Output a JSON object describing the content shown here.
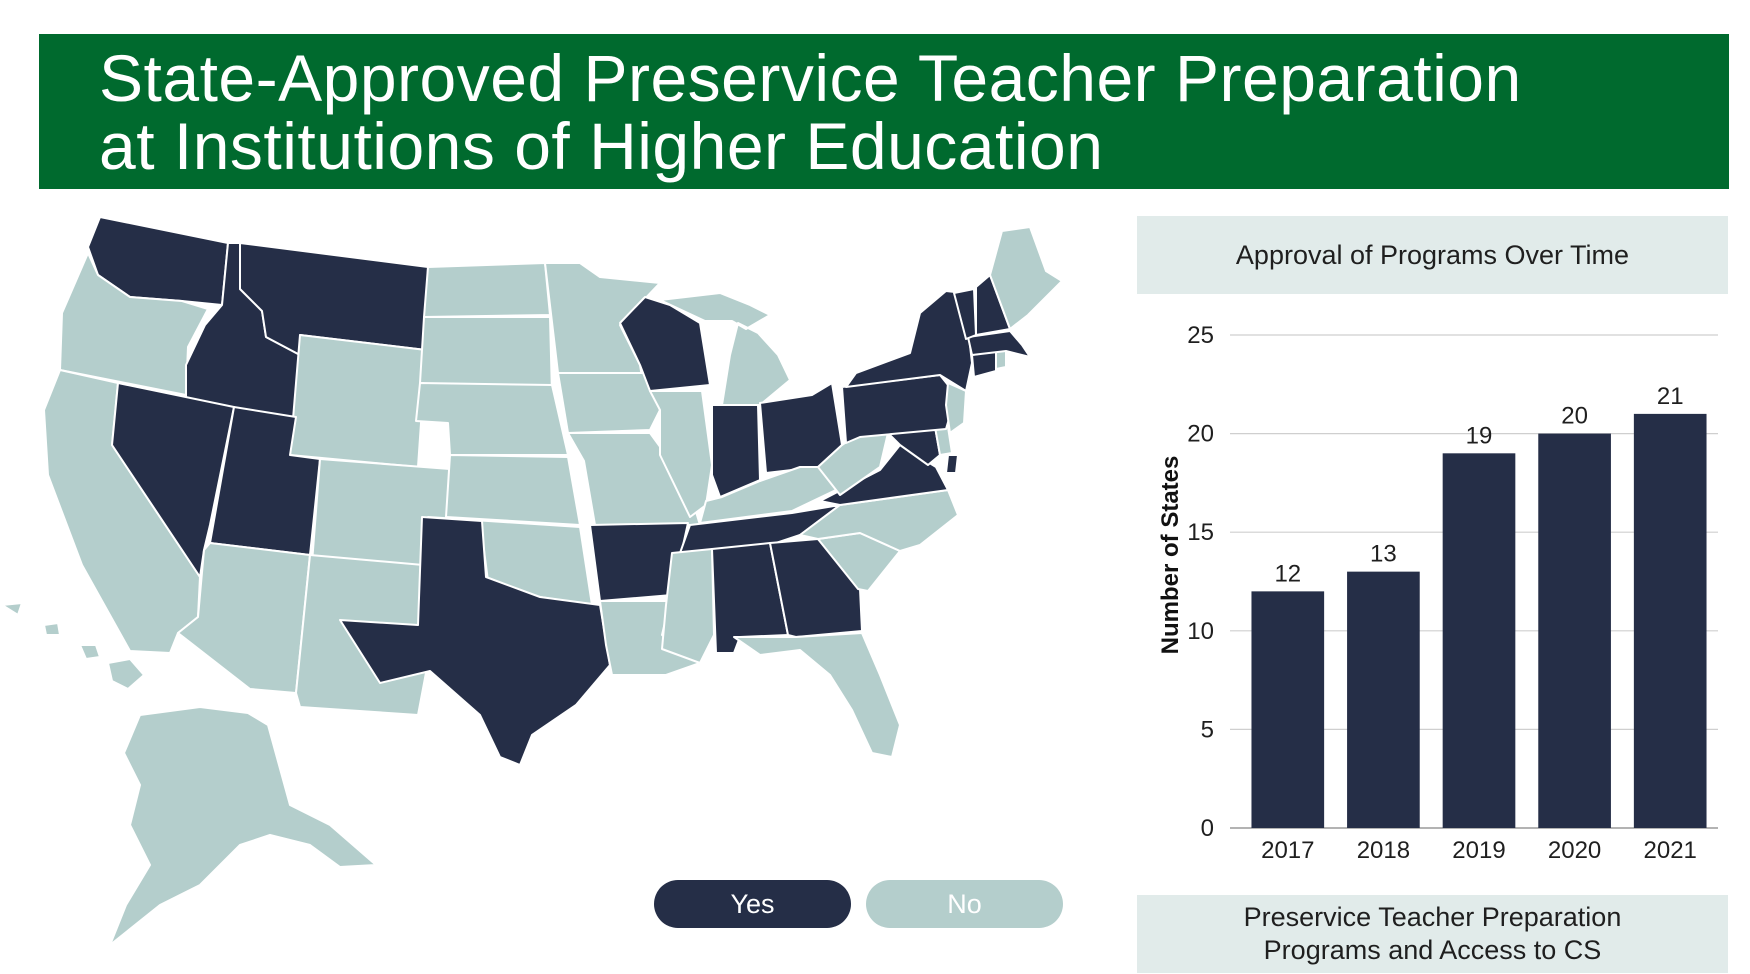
{
  "title": {
    "line1": "State-Approved Preservice Teacher Preparation",
    "line2": "at Institutions of Higher Education"
  },
  "colors": {
    "banner": "#006a2e",
    "yes": "#252e47",
    "no": "#b4cecc",
    "panel": "#e1ebea"
  },
  "legend": {
    "yes": "Yes",
    "no": "No"
  },
  "map": {
    "states_yes": [
      "WA",
      "ID",
      "MT",
      "NV",
      "UT",
      "TX",
      "AR",
      "WI",
      "IN",
      "OH",
      "TN",
      "AL",
      "GA",
      "VA",
      "MD",
      "PA",
      "NY",
      "VT",
      "NH",
      "MA",
      "CT",
      "DC"
    ],
    "states_no": [
      "OR",
      "CA",
      "WY",
      "CO",
      "AZ",
      "NM",
      "ND",
      "SD",
      "NE",
      "KS",
      "OK",
      "MN",
      "IA",
      "MO",
      "IL",
      "MI",
      "KY",
      "WV",
      "NC",
      "SC",
      "FL",
      "MS",
      "LA",
      "ME",
      "NJ",
      "DE",
      "RI",
      "AK",
      "HI"
    ]
  },
  "chart_data": {
    "type": "bar",
    "title": "Approval of Programs Over Time",
    "categories": [
      "2017",
      "2018",
      "2019",
      "2020",
      "2021"
    ],
    "values": [
      12,
      13,
      19,
      20,
      21
    ],
    "ylabel": "Number of States",
    "ylim": [
      0,
      25
    ],
    "yticks": [
      0,
      5,
      10,
      15,
      20,
      25
    ],
    "grid": true,
    "bar_color": "#252e47"
  },
  "caption": {
    "line1": "Preservice Teacher Preparation",
    "line2": "Programs and Access to CS"
  }
}
